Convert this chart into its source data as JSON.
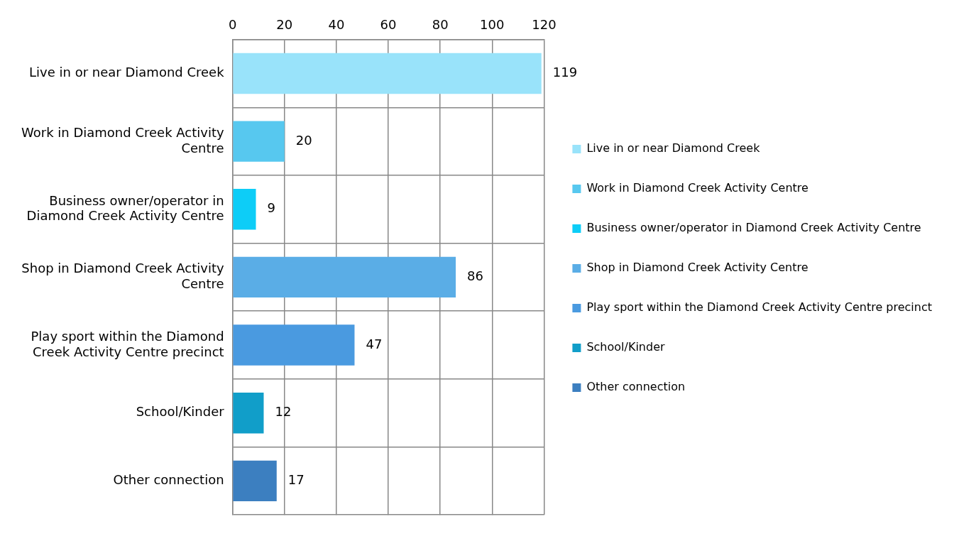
{
  "chart_data": {
    "type": "bar",
    "orientation": "horizontal",
    "stacked": true,
    "categories": [
      "Live in or near Diamond Creek",
      "Work in Diamond Creek Activity Centre",
      "Business owner/operator in Diamond Creek Activity Centre",
      "Shop in Diamond Creek Activity Centre",
      "Play sport within the Diamond Creek Activity Centre precinct",
      "School/Kinder",
      "Other connection"
    ],
    "series": [
      {
        "name": "Live in or near Diamond Creek",
        "color": "#99e3fa",
        "values": [
          119,
          null,
          null,
          null,
          null,
          null,
          null
        ]
      },
      {
        "name": "Work in Diamond Creek Activity Centre",
        "color": "#57c8ef",
        "values": [
          null,
          20,
          null,
          null,
          null,
          null,
          null
        ]
      },
      {
        "name": "Business owner/operator in Diamond Creek Activity Centre",
        "color": "#0dcdf7",
        "values": [
          null,
          null,
          9,
          null,
          null,
          null,
          null
        ]
      },
      {
        "name": "Shop in Diamond Creek Activity Centre",
        "color": "#5aade6",
        "values": [
          null,
          null,
          null,
          86,
          null,
          null,
          null
        ]
      },
      {
        "name": "Play sport within the Diamond Creek Activity Centre precinct",
        "color": "#4a9ae0",
        "values": [
          null,
          null,
          null,
          null,
          47,
          null,
          null
        ]
      },
      {
        "name": "School/Kinder",
        "color": "#119ec9",
        "values": [
          null,
          null,
          null,
          null,
          null,
          12,
          null
        ]
      },
      {
        "name": "Other connection",
        "color": "#3c7fc0",
        "values": [
          null,
          null,
          null,
          null,
          null,
          null,
          17
        ]
      }
    ],
    "xlim": [
      0,
      120
    ],
    "xticks": [
      0,
      20,
      40,
      60,
      80,
      100,
      120
    ],
    "grid": true,
    "legend": "right",
    "data_labels": true
  }
}
